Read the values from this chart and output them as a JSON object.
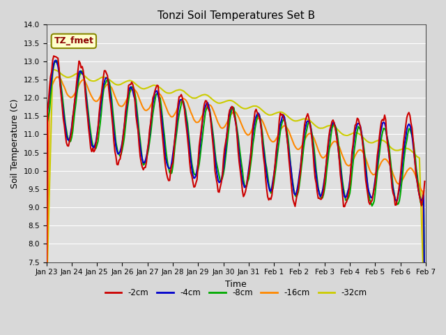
{
  "title": "Tonzi Soil Temperatures Set B",
  "xlabel": "Time",
  "ylabel": "Soil Temperature (C)",
  "ylim": [
    7.5,
    14.0
  ],
  "yticks": [
    7.5,
    8.0,
    8.5,
    9.0,
    9.5,
    10.0,
    10.5,
    11.0,
    11.5,
    12.0,
    12.5,
    13.0,
    13.5,
    14.0
  ],
  "xlabels": [
    "Jan 23",
    "Jan 24",
    "Jan 25",
    "Jan 26",
    "Jan 27",
    "Jan 28",
    "Jan 29",
    "Jan 30",
    "Jan 31",
    "Feb 1",
    "Feb 2",
    "Feb 3",
    "Feb 4",
    "Feb 5",
    "Feb 6",
    "Feb 7"
  ],
  "colors": {
    "-2cm": "#cc0000",
    "-4cm": "#0000cc",
    "-8cm": "#00aa00",
    "-16cm": "#ff8800",
    "-32cm": "#cccc00"
  },
  "legend_label": "TZ_fmet",
  "fig_bg": "#d8d8d8",
  "ax_bg": "#e0e0e0",
  "grid_color": "#ffffff"
}
